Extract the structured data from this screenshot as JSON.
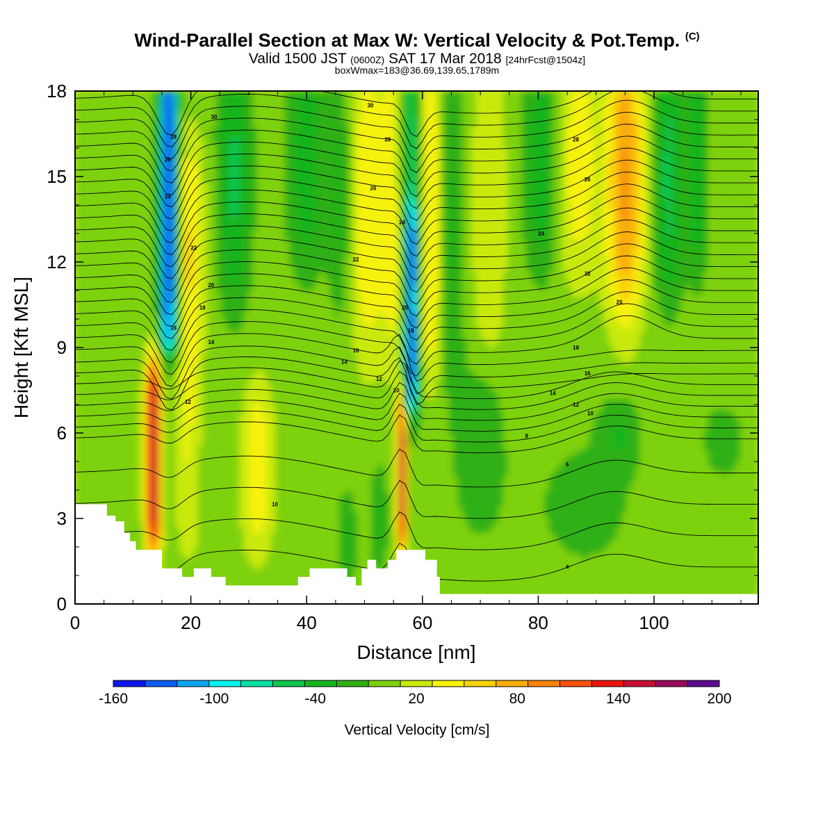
{
  "title": {
    "main": "Wind-Parallel Section at Max W: Vertical Velocity & Pot.Temp.",
    "mark": "(C)",
    "valid_a": "Valid 1500 JST",
    "valid_b": "(0600Z)",
    "valid_c": "SAT 17 Mar 2018",
    "valid_d": "[24hrFcst@1504z]",
    "box": "boxWmax=183@36.69,139.65,1789m"
  },
  "colors": {
    "scale": [
      "#0b16f0",
      "#0a5ef4",
      "#0aa6f0",
      "#07f2ee",
      "#07e0a2",
      "#0fc650",
      "#16b41e",
      "#2fb012",
      "#7ed10c",
      "#c9e90a",
      "#f7f20a",
      "#f9d20a",
      "#f9ad0a",
      "#f9820a",
      "#f9520a",
      "#ee1407",
      "#c80e35",
      "#990a5e",
      "#5e0a92"
    ],
    "terrain": "#ffffff"
  },
  "chart_data": {
    "type": "heatmap",
    "xlabel": "Distance [nm]",
    "ylabel": "Height [Kft MSL]",
    "xlim": [
      0,
      118
    ],
    "ylim": [
      0,
      18
    ],
    "xticks": [
      0,
      20,
      40,
      60,
      80,
      100
    ],
    "yticks": [
      0,
      3,
      6,
      9,
      12,
      15,
      18
    ],
    "colorbar": {
      "label": "Vertical Velocity [cm/s]",
      "min": -160,
      "max": 200,
      "step": 20,
      "tick_labels": [
        -160,
        -100,
        -40,
        20,
        80,
        140,
        200
      ]
    },
    "features": [
      {
        "kind": "updraft",
        "x": 13.5,
        "zmin": 2.0,
        "zmax": 8.5,
        "peak": 183
      },
      {
        "kind": "updraft",
        "x": 56.5,
        "zmin": 2.0,
        "zmax": 7.2,
        "peak": 170
      },
      {
        "kind": "downdraft",
        "x": 16.5,
        "zmin": 8.5,
        "zmax": 18,
        "peak": -150
      },
      {
        "kind": "downdraft",
        "x": 58.0,
        "zmin": 6.5,
        "zmax": 14,
        "peak": -145
      },
      {
        "kind": "ascent",
        "x": 95.0,
        "zmin": 10,
        "zmax": 18,
        "peak": 90
      }
    ],
    "terrain": {
      "x": [
        0,
        5.5,
        5.5,
        7,
        7,
        8.5,
        8.5,
        9.5,
        9.5,
        10.5,
        10.5,
        11,
        11,
        15,
        15,
        18.5,
        18.5,
        20.5,
        20.5,
        23.5,
        23.5,
        26,
        26,
        28.5,
        28.5,
        38.5,
        38.5,
        40.5,
        40.5,
        47,
        47,
        48.5,
        48.5,
        49.5,
        49.5,
        50.5,
        50.5,
        52,
        52,
        54,
        54,
        55.5,
        55.5,
        60.5,
        60.5,
        62.5,
        62.5,
        63,
        63,
        118
      ],
      "z": [
        3.5,
        3.5,
        3.1,
        3.1,
        2.9,
        2.9,
        2.5,
        2.5,
        2.2,
        2.2,
        1.9,
        1.9,
        1.9,
        1.9,
        1.25,
        1.25,
        0.95,
        0.95,
        1.25,
        1.25,
        0.95,
        0.95,
        0.65,
        0.65,
        0.65,
        0.65,
        0.95,
        0.95,
        1.25,
        1.25,
        0.95,
        0.95,
        0.65,
        0.65,
        1.25,
        1.25,
        1.55,
        1.55,
        1.25,
        1.25,
        1.55,
        1.55,
        1.9,
        1.9,
        1.55,
        1.55,
        0.95,
        0.95,
        0.35,
        0.35
      ]
    },
    "theta_labels": [
      {
        "x": 24,
        "z": 17.1,
        "text": "30"
      },
      {
        "x": 17,
        "z": 16.4,
        "text": "28"
      },
      {
        "x": 16,
        "z": 15.6,
        "text": "26"
      },
      {
        "x": 16,
        "z": 14.3,
        "text": "24"
      },
      {
        "x": 20.5,
        "z": 12.5,
        "text": "22"
      },
      {
        "x": 23.5,
        "z": 11.2,
        "text": "20"
      },
      {
        "x": 22,
        "z": 10.4,
        "text": "18"
      },
      {
        "x": 17,
        "z": 9.7,
        "text": "16"
      },
      {
        "x": 23.5,
        "z": 9.2,
        "text": "14"
      },
      {
        "x": 19.5,
        "z": 7.1,
        "text": "12"
      },
      {
        "x": 34.5,
        "z": 3.5,
        "text": "10"
      },
      {
        "x": 51,
        "z": 17.5,
        "text": "30"
      },
      {
        "x": 54,
        "z": 16.3,
        "text": "28"
      },
      {
        "x": 51.5,
        "z": 14.6,
        "text": "26"
      },
      {
        "x": 56.5,
        "z": 13.4,
        "text": "24"
      },
      {
        "x": 48.5,
        "z": 12.1,
        "text": "22"
      },
      {
        "x": 57,
        "z": 10.4,
        "text": "20"
      },
      {
        "x": 58,
        "z": 9.6,
        "text": "18"
      },
      {
        "x": 48.5,
        "z": 8.9,
        "text": "16"
      },
      {
        "x": 46.5,
        "z": 8.5,
        "text": "14"
      },
      {
        "x": 52.5,
        "z": 7.9,
        "text": "12"
      },
      {
        "x": 55.5,
        "z": 7.5,
        "text": "10"
      },
      {
        "x": 86.5,
        "z": 16.3,
        "text": "28"
      },
      {
        "x": 88.5,
        "z": 14.9,
        "text": "26"
      },
      {
        "x": 80.5,
        "z": 13.0,
        "text": "24"
      },
      {
        "x": 88.5,
        "z": 11.6,
        "text": "22"
      },
      {
        "x": 94,
        "z": 10.6,
        "text": "20"
      },
      {
        "x": 86.5,
        "z": 9.0,
        "text": "18"
      },
      {
        "x": 88.5,
        "z": 8.1,
        "text": "16"
      },
      {
        "x": 82.5,
        "z": 7.4,
        "text": "14"
      },
      {
        "x": 86.5,
        "z": 7.0,
        "text": "12"
      },
      {
        "x": 89,
        "z": 6.7,
        "text": "10"
      },
      {
        "x": 78,
        "z": 5.9,
        "text": "8"
      },
      {
        "x": 85,
        "z": 4.9,
        "text": "6"
      },
      {
        "x": 85,
        "z": 1.3,
        "text": "4"
      }
    ]
  }
}
